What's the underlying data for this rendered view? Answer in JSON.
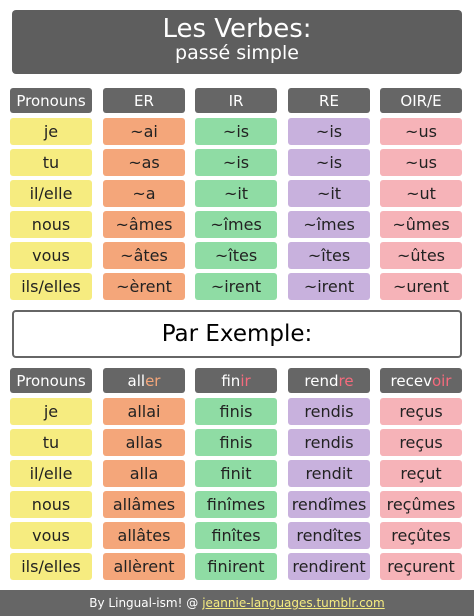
{
  "title": {
    "line1": "Les Verbes:",
    "line2": "passé simple"
  },
  "conjugation_table": {
    "header": [
      "Pronouns",
      "ER",
      "IR",
      "RE",
      "OIR/E"
    ],
    "rows": [
      [
        "je",
        "~ai",
        "~is",
        "~is",
        "~us"
      ],
      [
        "tu",
        "~as",
        "~is",
        "~is",
        "~us"
      ],
      [
        "il/elle",
        "~a",
        "~it",
        "~it",
        "~ut"
      ],
      [
        "nous",
        "~âmes",
        "~îmes",
        "~îmes",
        "~ûmes"
      ],
      [
        "vous",
        "~âtes",
        "~îtes",
        "~îtes",
        "~ûtes"
      ],
      [
        "ils/elles",
        "~èrent",
        "~irent",
        "~irent",
        "~urent"
      ]
    ]
  },
  "example_banner": "Par Exemple:",
  "example_table": {
    "header": "Pronouns",
    "verbs": [
      {
        "stem": "all",
        "ending": "er"
      },
      {
        "stem": "fin",
        "ending": "ir"
      },
      {
        "stem": "rend",
        "ending": "re"
      },
      {
        "stem": "recev",
        "ending": "oir"
      }
    ],
    "rows": [
      [
        "je",
        "allai",
        "finis",
        "rendis",
        "reçus"
      ],
      [
        "tu",
        "allas",
        "finis",
        "rendis",
        "reçus"
      ],
      [
        "il/elle",
        "alla",
        "finit",
        "rendit",
        "reçut"
      ],
      [
        "nous",
        "allâmes",
        "finîmes",
        "rendîmes",
        "reçûmes"
      ],
      [
        "vous",
        "allâtes",
        "finîtes",
        "rendîtes",
        "reçûtes"
      ],
      [
        "ils/elles",
        "allèrent",
        "finirent",
        "rendirent",
        "reçurent"
      ]
    ]
  },
  "footer": {
    "credit": "By Lingual-ism! @",
    "url": "jeannie-languages.tumblr.com"
  }
}
